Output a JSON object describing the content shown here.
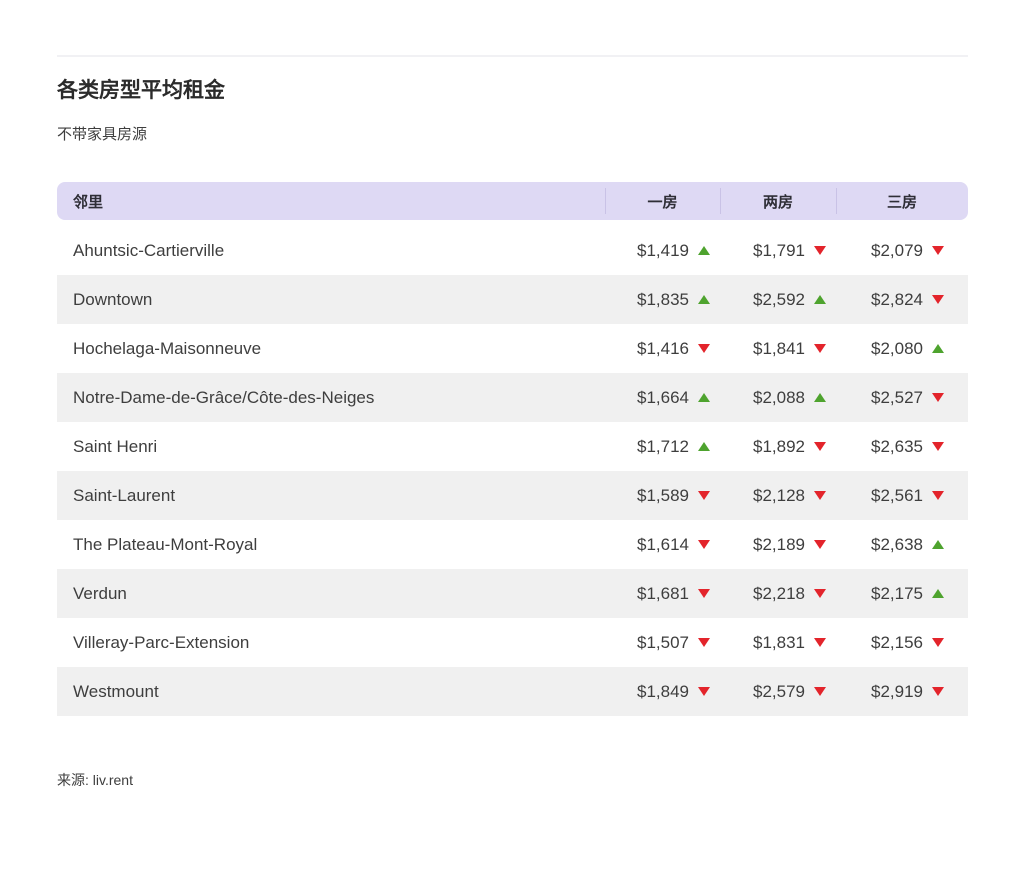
{
  "title": "各类房型平均租金",
  "subtitle": "不带家具房源",
  "source": "来源: liv.rent",
  "colors": {
    "trend_up_green": "#4EA32E",
    "trend_down_red": "#E3242B",
    "header_background": "#DED9F4",
    "alternate_row_background": "#F0F0F0"
  },
  "chart_data": {
    "type": "table",
    "title": "各类房型平均租金",
    "subtitle": "不带家具房源",
    "columns": [
      "邻里",
      "一房",
      "两房",
      "三房"
    ],
    "rows": [
      {
        "neighborhood": "Ahuntsic-Cartierville",
        "values": [
          {
            "price": "$1,419",
            "trend": "up"
          },
          {
            "price": "$1,791",
            "trend": "down"
          },
          {
            "price": "$2,079",
            "trend": "down"
          }
        ]
      },
      {
        "neighborhood": "Downtown",
        "values": [
          {
            "price": "$1,835",
            "trend": "up"
          },
          {
            "price": "$2,592",
            "trend": "up"
          },
          {
            "price": "$2,824",
            "trend": "down"
          }
        ]
      },
      {
        "neighborhood": "Hochelaga-Maisonneuve",
        "values": [
          {
            "price": "$1,416",
            "trend": "down"
          },
          {
            "price": "$1,841",
            "trend": "down"
          },
          {
            "price": "$2,080",
            "trend": "up"
          }
        ]
      },
      {
        "neighborhood": "Notre-Dame-de-Grâce/Côte-des-Neiges",
        "values": [
          {
            "price": "$1,664",
            "trend": "up"
          },
          {
            "price": "$2,088",
            "trend": "up"
          },
          {
            "price": "$2,527",
            "trend": "down"
          }
        ]
      },
      {
        "neighborhood": "Saint Henri",
        "values": [
          {
            "price": "$1,712",
            "trend": "up"
          },
          {
            "price": "$1,892",
            "trend": "down"
          },
          {
            "price": "$2,635",
            "trend": "down"
          }
        ]
      },
      {
        "neighborhood": "Saint-Laurent",
        "values": [
          {
            "price": "$1,589",
            "trend": "down"
          },
          {
            "price": "$2,128",
            "trend": "down"
          },
          {
            "price": "$2,561",
            "trend": "down"
          }
        ]
      },
      {
        "neighborhood": "The Plateau-Mont-Royal",
        "values": [
          {
            "price": "$1,614",
            "trend": "down"
          },
          {
            "price": "$2,189",
            "trend": "down"
          },
          {
            "price": "$2,638",
            "trend": "up"
          }
        ]
      },
      {
        "neighborhood": "Verdun",
        "values": [
          {
            "price": "$1,681",
            "trend": "down"
          },
          {
            "price": "$2,218",
            "trend": "down"
          },
          {
            "price": "$2,175",
            "trend": "up"
          }
        ]
      },
      {
        "neighborhood": "Villeray-Parc-Extension",
        "values": [
          {
            "price": "$1,507",
            "trend": "down"
          },
          {
            "price": "$1,831",
            "trend": "down"
          },
          {
            "price": "$2,156",
            "trend": "down"
          }
        ]
      },
      {
        "neighborhood": "Westmount",
        "values": [
          {
            "price": "$1,849",
            "trend": "down"
          },
          {
            "price": "$2,579",
            "trend": "down"
          },
          {
            "price": "$2,919",
            "trend": "down"
          }
        ]
      }
    ]
  }
}
